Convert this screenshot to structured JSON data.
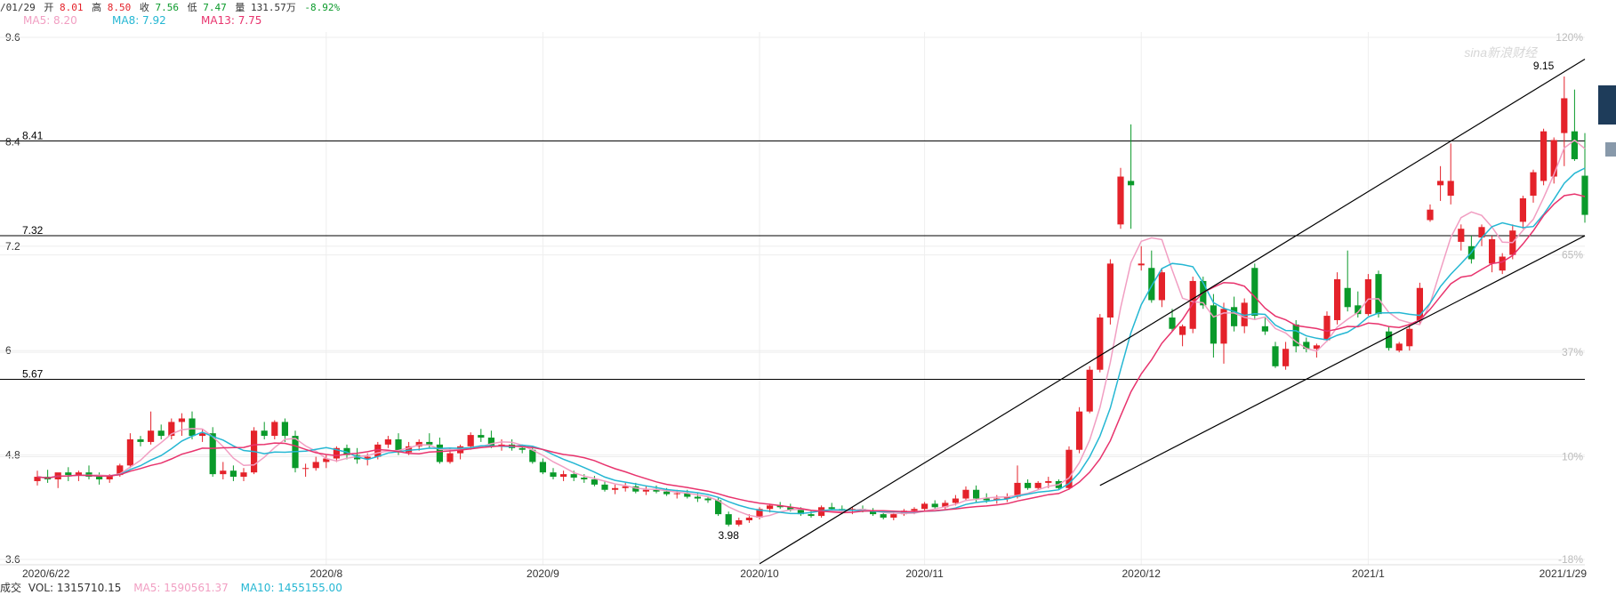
{
  "header": {
    "date": "/01/29",
    "open_label": "开",
    "open": "8.01",
    "high_label": "高",
    "high": "8.50",
    "close_label": "收",
    "close": "7.56",
    "low_label": "低",
    "low": "7.47",
    "vol_label": "量",
    "vol": "131.57万",
    "change": "-8.92%"
  },
  "ma_legend": [
    {
      "text": "MA5: 8.20",
      "color": "#f19ec2"
    },
    {
      "text": "MA8: 7.92",
      "color": "#25b7d3"
    },
    {
      "text": "MA13: 7.75",
      "color": "#e8336d"
    }
  ],
  "footer": {
    "label": "成交",
    "vol": "VOL: 1315710.15",
    "ma5": "MA5: 1590561.37",
    "ma10": "MA10: 1455155.00"
  },
  "watermark": "sina新浪财经",
  "colors": {
    "up": "#e4222a",
    "down": "#0a9a2a",
    "ma5": "#f19ec2",
    "ma8": "#25b7d3",
    "ma13": "#e8336d"
  },
  "chart_data": {
    "type": "candlestick",
    "x_ticks": [
      {
        "label": "2020/6/22",
        "index": 0
      },
      {
        "label": "2020/8",
        "index": 28
      },
      {
        "label": "2020/9",
        "index": 49
      },
      {
        "label": "2020/10",
        "index": 70
      },
      {
        "label": "2020/11",
        "index": 86
      },
      {
        "label": "2020/12",
        "index": 107
      },
      {
        "label": "2021/1",
        "index": 129
      },
      {
        "label": "2021/1/29",
        "index": 149
      }
    ],
    "y_ticks": [
      "9.6",
      "8.4",
      "7.2",
      "6",
      "4.8",
      "3.6"
    ],
    "pct_ticks": [
      {
        "label": "120%",
        "value": 9.6
      },
      {
        "label": "65%",
        "value": 7.1
      },
      {
        "label": "37%",
        "value": 5.98
      },
      {
        "label": "10%",
        "value": 4.78
      },
      {
        "label": "-18%",
        "value": 3.6
      }
    ],
    "ylim": [
      3.6,
      9.6
    ],
    "levels": [
      {
        "label": "8.41",
        "value": 8.41
      },
      {
        "label": "7.32",
        "value": 7.32
      },
      {
        "label": "5.67",
        "value": 5.67
      }
    ],
    "point_labels": [
      {
        "label": "3.98",
        "index": 67,
        "value": 3.98
      },
      {
        "label": "9.15",
        "index": 146,
        "value": 9.15
      }
    ],
    "trend_lines": [
      {
        "x1": 70,
        "y1": 3.55,
        "x2": 150,
        "y2": 9.35
      },
      {
        "x1": 103,
        "y1": 4.45,
        "x2": 150,
        "y2": 7.32
      }
    ],
    "candles": [
      [
        4.5,
        4.62,
        4.45,
        4.55
      ],
      [
        4.55,
        4.63,
        4.48,
        4.52
      ],
      [
        4.52,
        4.58,
        4.42,
        4.6
      ],
      [
        4.6,
        4.66,
        4.5,
        4.57
      ],
      [
        4.57,
        4.62,
        4.5,
        4.6
      ],
      [
        4.6,
        4.68,
        4.52,
        4.55
      ],
      [
        4.55,
        4.6,
        4.46,
        4.52
      ],
      [
        4.52,
        4.58,
        4.48,
        4.57
      ],
      [
        4.57,
        4.7,
        4.55,
        4.68
      ],
      [
        4.68,
        5.05,
        4.65,
        4.98
      ],
      [
        4.98,
        5.02,
        4.9,
        4.95
      ],
      [
        4.95,
        5.3,
        4.92,
        5.08
      ],
      [
        5.08,
        5.15,
        4.98,
        5.02
      ],
      [
        5.02,
        5.22,
        4.98,
        5.18
      ],
      [
        5.18,
        5.28,
        5.02,
        5.22
      ],
      [
        5.22,
        5.3,
        4.98,
        5.02
      ],
      [
        5.02,
        5.1,
        4.95,
        5.05
      ],
      [
        5.05,
        5.12,
        4.55,
        4.58
      ],
      [
        4.58,
        4.72,
        4.52,
        4.62
      ],
      [
        4.62,
        4.68,
        4.5,
        4.55
      ],
      [
        4.55,
        4.65,
        4.5,
        4.6
      ],
      [
        4.6,
        5.12,
        4.58,
        5.08
      ],
      [
        5.08,
        5.18,
        4.98,
        5.02
      ],
      [
        5.02,
        5.2,
        4.98,
        5.18
      ],
      [
        5.18,
        5.22,
        4.95,
        5.02
      ],
      [
        5.02,
        5.08,
        4.6,
        4.65
      ],
      [
        4.65,
        4.7,
        4.55,
        4.65
      ],
      [
        4.65,
        4.78,
        4.62,
        4.72
      ],
      [
        4.72,
        4.8,
        4.65,
        4.76
      ],
      [
        4.76,
        4.9,
        4.72,
        4.88
      ],
      [
        4.88,
        4.92,
        4.75,
        4.8
      ],
      [
        4.8,
        4.88,
        4.7,
        4.75
      ],
      [
        4.75,
        4.82,
        4.68,
        4.78
      ],
      [
        4.78,
        4.95,
        4.75,
        4.92
      ],
      [
        4.92,
        5.02,
        4.88,
        4.98
      ],
      [
        4.98,
        5.05,
        4.8,
        4.83
      ],
      [
        4.83,
        4.95,
        4.8,
        4.9
      ],
      [
        4.9,
        4.98,
        4.85,
        4.95
      ],
      [
        4.95,
        5.05,
        4.88,
        4.92
      ],
      [
        4.92,
        5.0,
        4.7,
        4.72
      ],
      [
        4.72,
        4.88,
        4.7,
        4.82
      ],
      [
        4.82,
        4.92,
        4.75,
        4.9
      ],
      [
        4.9,
        5.06,
        4.86,
        5.03
      ],
      [
        5.03,
        5.1,
        4.95,
        5.0
      ],
      [
        5.0,
        5.08,
        4.88,
        4.9
      ],
      [
        4.9,
        4.98,
        4.85,
        4.92
      ],
      [
        4.92,
        4.98,
        4.85,
        4.88
      ],
      [
        4.88,
        4.92,
        4.82,
        4.86
      ],
      [
        4.86,
        4.9,
        4.7,
        4.72
      ],
      [
        4.72,
        4.76,
        4.58,
        4.6
      ],
      [
        4.6,
        4.65,
        4.52,
        4.55
      ],
      [
        4.55,
        4.62,
        4.5,
        4.58
      ],
      [
        4.58,
        4.62,
        4.5,
        4.54
      ],
      [
        4.54,
        4.58,
        4.48,
        4.52
      ],
      [
        4.52,
        4.56,
        4.44,
        4.46
      ],
      [
        4.46,
        4.5,
        4.38,
        4.4
      ],
      [
        4.4,
        4.46,
        4.35,
        4.42
      ],
      [
        4.42,
        4.48,
        4.38,
        4.44
      ],
      [
        4.44,
        4.48,
        4.36,
        4.38
      ],
      [
        4.38,
        4.44,
        4.34,
        4.4
      ],
      [
        4.4,
        4.45,
        4.36,
        4.38
      ],
      [
        4.38,
        4.42,
        4.33,
        4.35
      ],
      [
        4.35,
        4.4,
        4.3,
        4.36
      ],
      [
        4.36,
        4.4,
        4.3,
        4.32
      ],
      [
        4.32,
        4.36,
        4.26,
        4.3
      ],
      [
        4.3,
        4.33,
        4.25,
        4.28
      ],
      [
        4.28,
        4.31,
        4.1,
        4.12
      ],
      [
        4.12,
        4.15,
        3.98,
        4.0
      ],
      [
        4.0,
        4.08,
        3.98,
        4.05
      ],
      [
        4.05,
        4.12,
        4.02,
        4.08
      ],
      [
        4.08,
        4.2,
        4.06,
        4.18
      ],
      [
        4.18,
        4.24,
        4.14,
        4.22
      ],
      [
        4.22,
        4.26,
        4.18,
        4.2
      ],
      [
        4.2,
        4.24,
        4.15,
        4.17
      ],
      [
        4.17,
        4.2,
        4.1,
        4.12
      ],
      [
        4.12,
        4.16,
        4.08,
        4.1
      ],
      [
        4.1,
        4.22,
        4.08,
        4.2
      ],
      [
        4.2,
        4.25,
        4.15,
        4.18
      ],
      [
        4.18,
        4.22,
        4.12,
        4.16
      ],
      [
        4.16,
        4.2,
        4.12,
        4.18
      ],
      [
        4.18,
        4.22,
        4.14,
        4.16
      ],
      [
        4.16,
        4.19,
        4.1,
        4.12
      ],
      [
        4.12,
        4.16,
        4.06,
        4.08
      ],
      [
        4.08,
        4.14,
        4.05,
        4.12
      ],
      [
        4.12,
        4.18,
        4.1,
        4.16
      ],
      [
        4.16,
        4.2,
        4.12,
        4.18
      ],
      [
        4.18,
        4.26,
        4.15,
        4.24
      ],
      [
        4.24,
        4.28,
        4.18,
        4.2
      ],
      [
        4.2,
        4.28,
        4.18,
        4.25
      ],
      [
        4.25,
        4.34,
        4.22,
        4.3
      ],
      [
        4.3,
        4.44,
        4.28,
        4.4
      ],
      [
        4.4,
        4.45,
        4.26,
        4.3
      ],
      [
        4.3,
        4.36,
        4.25,
        4.28
      ],
      [
        4.28,
        4.34,
        4.24,
        4.3
      ],
      [
        4.3,
        4.36,
        4.26,
        4.32
      ],
      [
        4.32,
        4.68,
        4.3,
        4.48
      ],
      [
        4.48,
        4.52,
        4.4,
        4.42
      ],
      [
        4.42,
        4.5,
        4.4,
        4.48
      ],
      [
        4.48,
        4.55,
        4.42,
        4.5
      ],
      [
        4.5,
        4.52,
        4.4,
        4.42
      ],
      [
        4.42,
        4.9,
        4.4,
        4.86
      ],
      [
        4.86,
        5.35,
        4.82,
        5.3
      ],
      [
        5.3,
        5.82,
        5.28,
        5.78
      ],
      [
        5.78,
        6.42,
        5.75,
        6.38
      ],
      [
        6.38,
        7.05,
        6.3,
        7.0
      ],
      [
        7.45,
        8.1,
        7.4,
        8.0
      ],
      [
        7.95,
        8.6,
        7.4,
        7.9
      ],
      [
        6.98,
        7.2,
        6.92,
        7.0
      ],
      [
        6.95,
        7.15,
        6.55,
        6.58
      ],
      [
        6.58,
        6.95,
        6.5,
        6.9
      ],
      [
        6.38,
        6.48,
        6.22,
        6.25
      ],
      [
        6.18,
        6.3,
        6.05,
        6.28
      ],
      [
        6.25,
        6.85,
        6.2,
        6.8
      ],
      [
        6.8,
        6.85,
        6.48,
        6.52
      ],
      [
        6.52,
        6.65,
        5.92,
        6.08
      ],
      [
        6.08,
        6.55,
        5.85,
        6.48
      ],
      [
        6.5,
        6.62,
        6.22,
        6.28
      ],
      [
        6.28,
        6.6,
        6.2,
        6.55
      ],
      [
        6.95,
        7.0,
        6.35,
        6.4
      ],
      [
        6.28,
        6.38,
        6.18,
        6.22
      ],
      [
        6.05,
        6.1,
        5.8,
        5.82
      ],
      [
        5.82,
        6.1,
        5.78,
        6.02
      ],
      [
        6.3,
        6.35,
        5.98,
        6.05
      ],
      [
        6.1,
        6.15,
        5.98,
        6.02
      ],
      [
        6.02,
        6.08,
        5.92,
        6.06
      ],
      [
        6.12,
        6.45,
        6.1,
        6.4
      ],
      [
        6.35,
        6.9,
        6.3,
        6.82
      ],
      [
        6.72,
        7.15,
        6.45,
        6.5
      ],
      [
        6.52,
        6.68,
        6.38,
        6.42
      ],
      [
        6.42,
        6.88,
        6.4,
        6.82
      ],
      [
        6.88,
        6.92,
        6.38,
        6.42
      ],
      [
        6.22,
        6.28,
        6.0,
        6.03
      ],
      [
        6.0,
        6.1,
        5.98,
        6.08
      ],
      [
        6.05,
        6.3,
        6.0,
        6.25
      ],
      [
        6.35,
        6.78,
        6.3,
        6.72
      ],
      [
        7.5,
        7.68,
        7.48,
        7.62
      ],
      [
        7.9,
        8.12,
        7.72,
        7.95
      ],
      [
        7.78,
        8.38,
        7.68,
        7.95
      ],
      [
        7.25,
        7.45,
        7.15,
        7.4
      ],
      [
        7.2,
        7.32,
        7.0,
        7.05
      ],
      [
        7.3,
        7.45,
        7.2,
        7.42
      ],
      [
        7.0,
        7.32,
        6.9,
        7.28
      ],
      [
        6.92,
        7.12,
        6.88,
        7.08
      ],
      [
        7.1,
        7.45,
        7.05,
        7.38
      ],
      [
        7.48,
        7.78,
        7.4,
        7.75
      ],
      [
        7.78,
        8.08,
        7.7,
        8.05
      ],
      [
        7.95,
        8.55,
        7.9,
        8.52
      ],
      [
        8.0,
        8.45,
        7.92,
        8.42
      ],
      [
        8.5,
        9.15,
        8.12,
        8.9
      ],
      [
        8.52,
        9.0,
        8.18,
        8.2
      ],
      [
        8.01,
        8.5,
        7.47,
        7.56
      ]
    ]
  }
}
